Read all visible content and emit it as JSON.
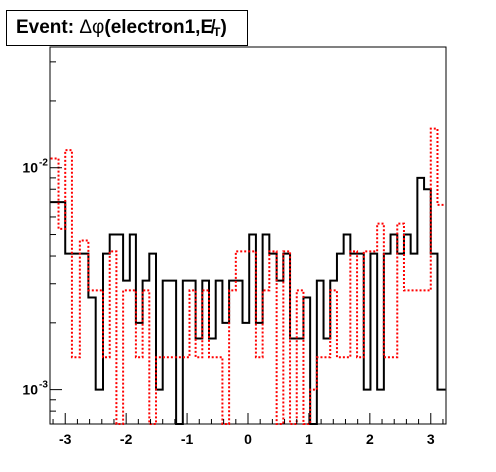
{
  "title": {
    "prefix": "Event: ",
    "delta": "Δφ",
    "body": "(electron1,",
    "met": "E̸",
    "met_sub": "T",
    "suffix": ")"
  },
  "chart_data": {
    "type": "histogram-step",
    "title": "Event: Δφ(electron1,E̸T)",
    "xlabel": "",
    "ylabel": "",
    "xlim": [
      -3.25,
      3.25
    ],
    "ylim": [
      0.0007,
      0.035
    ],
    "yscale": "log",
    "grid": false,
    "legend": "none",
    "xticks": [
      "-3",
      "-2",
      "-1",
      "0",
      "1",
      "2",
      "3"
    ],
    "yticks": [
      {
        "base": "10",
        "exp": "-2",
        "value": 0.01
      },
      {
        "base": "10",
        "exp": "-3",
        "value": 0.001
      }
    ],
    "bin_edges": [
      -3.24,
      -3.11,
      -3.0,
      -2.89,
      -2.76,
      -2.62,
      -2.5,
      -2.38,
      -2.27,
      -2.16,
      -2.05,
      -1.94,
      -1.84,
      -1.73,
      -1.62,
      -1.51,
      -1.4,
      -1.29,
      -1.18,
      -1.07,
      -0.96,
      -0.86,
      -0.75,
      -0.64,
      -0.53,
      -0.42,
      -0.31,
      -0.2,
      -0.09,
      0.02,
      0.13,
      0.24,
      0.35,
      0.47,
      0.58,
      0.69,
      0.8,
      0.91,
      1.02,
      1.13,
      1.24,
      1.35,
      1.46,
      1.57,
      1.68,
      1.79,
      1.9,
      2.01,
      2.12,
      2.23,
      2.34,
      2.45,
      2.56,
      2.67,
      2.78,
      2.89,
      3.0,
      3.11,
      3.24
    ],
    "series": [
      {
        "color": "#000000",
        "style": "solid",
        "values": [
          0.007,
          0.007,
          0.0041,
          0.0041,
          0.0041,
          0.0026,
          0.001,
          0.0041,
          0.005,
          0.005,
          0.0031,
          0.005,
          0.002,
          0.0031,
          0.0041,
          0.001,
          0.0031,
          0.0031,
          0.0007,
          0.0031,
          0.0031,
          0.0017,
          0.0031,
          0.0017,
          0.0031,
          0.002,
          0.0031,
          0.0031,
          0.002,
          0.005,
          0.002,
          0.005,
          0.0041,
          0.0031,
          0.0041,
          0.0017,
          0.0017,
          0.0026,
          0.0007,
          0.0031,
          0.0017,
          0.0031,
          0.0041,
          0.005,
          0.0041,
          0.0041,
          0.001,
          0.0041,
          0.001,
          0.0041,
          0.005,
          0.0041,
          0.005,
          0.0041,
          0.009,
          0.008,
          0.0041,
          0.001
        ]
      },
      {
        "color": "#ff0000",
        "style": "dotted",
        "values": [
          0.011,
          0.0053,
          0.012,
          0.0014,
          0.0047,
          0.0028,
          0.0028,
          0.0014,
          0.0042,
          0.0007,
          0.0028,
          0.0028,
          0.0014,
          0.0028,
          0.0007,
          0.0014,
          0.0014,
          0.0014,
          0.0014,
          0.0014,
          0.0028,
          0.0014,
          0.0028,
          0.0014,
          0.0014,
          0.0007,
          0.0028,
          0.0042,
          0.0042,
          0.0042,
          0.0014,
          0.0028,
          0.0042,
          0.0007,
          0.0042,
          0.0007,
          0.0028,
          0.0007,
          0.001,
          0.0014,
          0.0014,
          0.0028,
          0.0014,
          0.0014,
          0.0042,
          0.0014,
          0.0042,
          0.0042,
          0.0056,
          0.0014,
          0.0014,
          0.0056,
          0.0028,
          0.0028,
          0.0028,
          0.0028,
          0.015,
          0.0068
        ]
      }
    ]
  }
}
